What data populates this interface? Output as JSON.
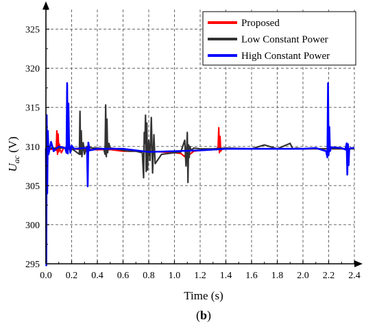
{
  "panel_label": "(b)",
  "chart_data": {
    "type": "line",
    "title": "",
    "xlabel": "Time (s)",
    "ylabel_main": "U",
    "ylabel_sub": "ac",
    "ylabel_unit": " (V)",
    "xlim": [
      0.0,
      2.4
    ],
    "ylim": [
      295,
      327.5
    ],
    "xticks": [
      0.0,
      0.2,
      0.4,
      0.6,
      0.8,
      1.0,
      1.2,
      1.4,
      1.6,
      1.8,
      2.0,
      2.2,
      2.4
    ],
    "xtick_labels": [
      "0.0",
      "0.2",
      "0.4",
      "0.6",
      "0.8",
      "1.0",
      "1.2",
      "1.4",
      "1.6",
      "1.8",
      "2.0",
      "2.2",
      "2.4"
    ],
    "yticks": [
      295,
      300,
      305,
      310,
      315,
      320,
      325
    ],
    "ytick_labels": [
      "295",
      "300",
      "305",
      "310",
      "315",
      "320",
      "325"
    ],
    "grid": true,
    "legend_position": "top-right",
    "series": [
      {
        "name": "Proposed",
        "color": "#ff0000",
        "x": [
          0.0,
          0.02,
          0.06,
          0.08,
          0.085,
          0.09,
          0.095,
          0.1,
          0.105,
          0.11,
          0.12,
          0.14,
          0.16,
          0.2,
          0.3,
          0.4,
          0.5,
          0.6,
          0.7,
          0.8,
          0.9,
          1.0,
          1.05,
          1.08,
          1.1,
          1.12,
          1.15,
          1.2,
          1.3,
          1.33,
          1.34,
          1.345,
          1.35,
          1.355,
          1.36,
          1.37,
          1.4,
          1.5,
          1.6,
          1.8,
          2.0,
          2.2,
          2.3,
          2.4
        ],
        "y": [
          309.8,
          309.6,
          309.7,
          309.5,
          312.0,
          309.0,
          311.6,
          309.3,
          310.3,
          309.6,
          309.2,
          309.9,
          309.6,
          309.7,
          309.6,
          309.6,
          309.6,
          309.4,
          309.4,
          309.4,
          309.3,
          309.2,
          309.1,
          308.7,
          309.7,
          309.0,
          309.4,
          309.5,
          309.6,
          309.6,
          310.0,
          312.4,
          309.2,
          311.3,
          309.4,
          309.7,
          309.7,
          309.7,
          309.7,
          309.7,
          309.7,
          309.7,
          309.7,
          309.7
        ]
      },
      {
        "name": "Low Constant Power",
        "color": "#333333",
        "x": [
          0.0,
          0.05,
          0.1,
          0.15,
          0.2,
          0.22,
          0.26,
          0.265,
          0.27,
          0.275,
          0.28,
          0.29,
          0.3,
          0.32,
          0.36,
          0.4,
          0.45,
          0.46,
          0.465,
          0.47,
          0.475,
          0.48,
          0.49,
          0.5,
          0.55,
          0.6,
          0.65,
          0.7,
          0.75,
          0.76,
          0.765,
          0.77,
          0.775,
          0.78,
          0.785,
          0.79,
          0.8,
          0.81,
          0.82,
          0.83,
          0.84,
          0.85,
          0.9,
          1.0,
          1.05,
          1.08,
          1.09,
          1.1,
          1.105,
          1.11,
          1.115,
          1.12,
          1.13,
          1.15,
          1.2,
          1.3,
          1.4,
          1.6,
          1.7,
          1.8,
          1.9,
          1.92,
          1.95,
          2.0,
          2.2,
          2.4
        ],
        "y": [
          309.8,
          309.8,
          309.8,
          309.8,
          309.7,
          309.5,
          309.0,
          314.5,
          309.0,
          312.0,
          308.7,
          310.5,
          309.0,
          310.0,
          309.8,
          309.8,
          309.7,
          309.0,
          315.3,
          308.7,
          313.5,
          309.2,
          310.4,
          309.8,
          309.7,
          309.5,
          309.4,
          309.4,
          309.2,
          306.0,
          311.8,
          310.4,
          314.0,
          306.8,
          313.0,
          307.0,
          310.8,
          308.2,
          313.7,
          306.6,
          311.5,
          307.8,
          309.0,
          309.2,
          309.3,
          310.8,
          307.5,
          311.8,
          305.4,
          310.2,
          308.6,
          310.0,
          309.5,
          309.8,
          309.7,
          309.7,
          309.8,
          309.7,
          310.2,
          309.7,
          310.4,
          309.7,
          309.8,
          309.7,
          309.7,
          309.7
        ]
      },
      {
        "name": "High Constant Power",
        "color": "#0000ff",
        "x": [
          0.0,
          0.003,
          0.006,
          0.01,
          0.015,
          0.02,
          0.04,
          0.06,
          0.1,
          0.15,
          0.16,
          0.165,
          0.17,
          0.175,
          0.18,
          0.19,
          0.2,
          0.22,
          0.3,
          0.32,
          0.325,
          0.33,
          0.34,
          0.4,
          0.6,
          0.8,
          1.0,
          1.2,
          1.4,
          1.6,
          1.8,
          2.0,
          2.1,
          2.18,
          2.19,
          2.195,
          2.2,
          2.205,
          2.21,
          2.22,
          2.3,
          2.33,
          2.34,
          2.345,
          2.35,
          2.355,
          2.36,
          2.37,
          2.4
        ],
        "y": [
          309.8,
          294.8,
          314.0,
          304.0,
          312.0,
          309.0,
          310.6,
          309.4,
          310.0,
          309.8,
          309.2,
          318.1,
          309.1,
          315.5,
          310.5,
          309.2,
          310.1,
          309.7,
          309.8,
          309.8,
          304.9,
          310.5,
          309.5,
          309.7,
          309.7,
          309.3,
          309.4,
          309.5,
          309.7,
          309.7,
          309.7,
          309.7,
          309.8,
          309.4,
          308.6,
          318.1,
          308.9,
          312.5,
          309.4,
          309.9,
          309.8,
          309.6,
          310.4,
          306.4,
          310.3,
          307.6,
          309.7,
          309.8,
          309.8
        ]
      }
    ]
  }
}
